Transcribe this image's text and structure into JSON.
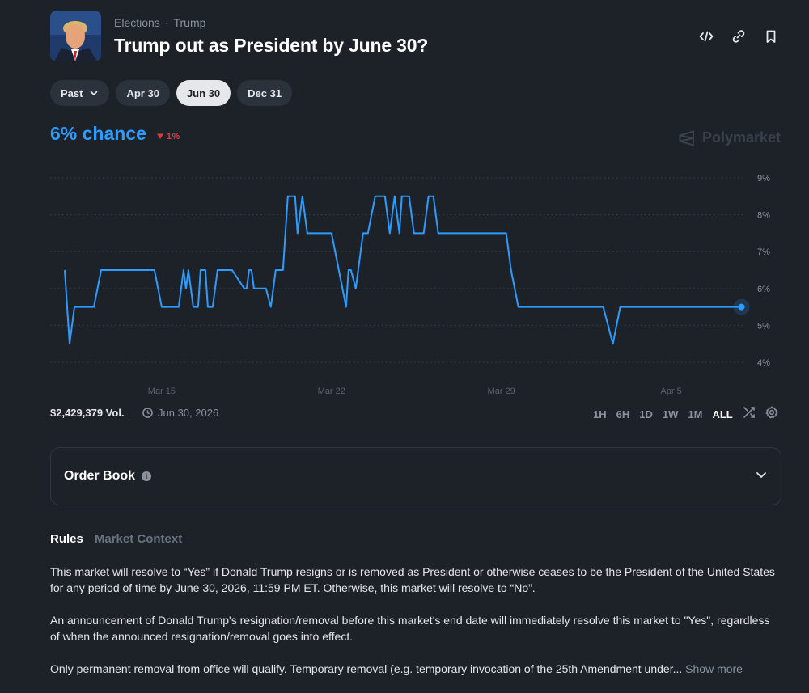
{
  "header": {
    "breadcrumb": [
      "Elections",
      "Trump"
    ],
    "title": "Trump out as President by June 30?",
    "actions": [
      "embed-icon",
      "link-icon",
      "bookmark-icon"
    ]
  },
  "date_tabs": {
    "past_label": "Past",
    "items": [
      "Apr 30",
      "Jun 30",
      "Dec 31"
    ],
    "selected": "Jun 30"
  },
  "probability": {
    "label": "6% chance",
    "delta": "1%",
    "delta_direction": "down",
    "color": "#2d9cff",
    "delta_color": "#e23a3a"
  },
  "brand": "Polymarket",
  "chart_data": {
    "type": "line",
    "y_unit": "%",
    "ylim": [
      4,
      9
    ],
    "yticks": [
      "9%",
      "8%",
      "7%",
      "6%",
      "5%",
      "4%"
    ],
    "xticks": [
      "Mar 15",
      "Mar 22",
      "Mar 29",
      "Apr 5"
    ],
    "grid": true,
    "line_color": "#2d9cff",
    "series": [
      {
        "values": [
          [
            0.0,
            6.5
          ],
          [
            0.2,
            4.5
          ],
          [
            0.4,
            5.5
          ],
          [
            1.2,
            5.5
          ],
          [
            1.5,
            6.5
          ],
          [
            3.7,
            6.5
          ],
          [
            4.0,
            5.5
          ],
          [
            4.7,
            5.5
          ],
          [
            4.9,
            6.5
          ],
          [
            5.0,
            6.0
          ],
          [
            5.1,
            6.5
          ],
          [
            5.2,
            6.0
          ],
          [
            5.3,
            5.5
          ],
          [
            5.5,
            5.5
          ],
          [
            5.6,
            6.5
          ],
          [
            5.8,
            6.5
          ],
          [
            5.9,
            5.5
          ],
          [
            6.1,
            5.5
          ],
          [
            6.3,
            6.5
          ],
          [
            6.9,
            6.5
          ],
          [
            7.4,
            6.0
          ],
          [
            7.5,
            6.0
          ],
          [
            7.6,
            6.5
          ],
          [
            7.7,
            6.5
          ],
          [
            7.8,
            6.0
          ],
          [
            8.3,
            6.0
          ],
          [
            8.5,
            5.5
          ],
          [
            8.7,
            6.5
          ],
          [
            9.0,
            6.5
          ],
          [
            9.2,
            8.5
          ],
          [
            9.5,
            8.5
          ],
          [
            9.6,
            7.5
          ],
          [
            9.8,
            8.5
          ],
          [
            10.0,
            7.5
          ],
          [
            10.7,
            7.5
          ],
          [
            10.8,
            7.5
          ],
          [
            11.0,
            7.5
          ],
          [
            11.3,
            6.5
          ],
          [
            11.6,
            5.5
          ],
          [
            11.7,
            6.5
          ],
          [
            11.8,
            6.5
          ],
          [
            12.0,
            6.0
          ],
          [
            12.3,
            7.5
          ],
          [
            12.5,
            7.5
          ],
          [
            12.8,
            8.5
          ],
          [
            13.2,
            8.5
          ],
          [
            13.4,
            7.5
          ],
          [
            13.6,
            8.5
          ],
          [
            13.8,
            7.5
          ],
          [
            13.9,
            8.5
          ],
          [
            14.2,
            8.5
          ],
          [
            14.4,
            7.5
          ],
          [
            14.8,
            7.5
          ],
          [
            15.0,
            8.5
          ],
          [
            15.2,
            8.5
          ],
          [
            15.4,
            7.5
          ],
          [
            18.2,
            7.5
          ],
          [
            18.4,
            6.5
          ],
          [
            18.7,
            5.5
          ],
          [
            22.2,
            5.5
          ],
          [
            22.6,
            4.5
          ],
          [
            22.9,
            5.5
          ],
          [
            27.9,
            5.5
          ]
        ]
      }
    ]
  },
  "stats": {
    "volume": "$2,429,379 Vol.",
    "end_date": "Jun 30, 2026"
  },
  "time_ranges": {
    "items": [
      "1H",
      "6H",
      "1D",
      "1W",
      "1M",
      "ALL"
    ],
    "selected": "ALL"
  },
  "order_book": {
    "label": "Order Book"
  },
  "rules_tabs": {
    "items": [
      "Rules",
      "Market Context"
    ],
    "selected": "Rules"
  },
  "rules": {
    "p1": "This market will resolve to “Yes” if Donald Trump resigns or is removed as President or otherwise ceases to be the President of the United States for any period of time by June 30, 2026, 11:59 PM ET. Otherwise, this market will resolve to “No”.",
    "p2": "An announcement of Donald Trump's resignation/removal before this market's end date will immediately resolve this market to \"Yes\", regardless of when the announced resignation/removal goes into effect.",
    "p3": "Only permanent removal from office will qualify. Temporary removal (e.g. temporary invocation of the 25th Amendment under...",
    "show_more": "Show more"
  }
}
